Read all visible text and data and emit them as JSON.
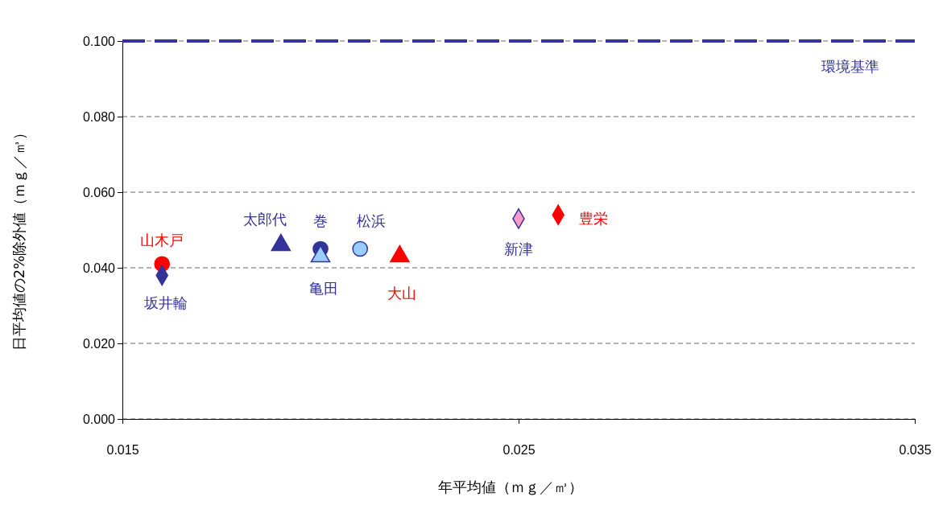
{
  "chart_data": {
    "type": "scatter",
    "xlabel": "年平均値（ｍｇ／㎥）",
    "ylabel": "日平均値の2%除外値（ｍｇ／㎥）",
    "xlim": [
      0.015,
      0.035
    ],
    "xticks": [
      0.015,
      0.025,
      0.035
    ],
    "ylim": [
      0,
      0.1
    ],
    "yticks": [
      {
        "value": 0,
        "label": "0.000"
      },
      {
        "value": 0.02,
        "label": "0.020"
      },
      {
        "value": 0.04,
        "label": "0.040"
      },
      {
        "value": 0.06,
        "label": "0.060"
      },
      {
        "value": 0.08,
        "label": "0.080"
      },
      {
        "value": 0.1,
        "label": "0.100"
      }
    ],
    "grid": "y",
    "ref_lines": [
      {
        "axis": "y",
        "value": 0.1,
        "label": "環境基準",
        "color": "#333399",
        "line_style": "dashed"
      }
    ],
    "series": [
      {
        "name": "山木戸",
        "color": "#ff0000",
        "marker": "circle",
        "x": [
          0.016
        ],
        "values": [
          0.041
        ]
      },
      {
        "name": "坂井輪",
        "color": "#333399",
        "marker": "diamond",
        "x": [
          0.016
        ],
        "values": [
          0.038
        ]
      },
      {
        "name": "太郎代",
        "color": "#333399",
        "marker": "triangle",
        "x": [
          0.019
        ],
        "values": [
          0.046
        ]
      },
      {
        "name": "巻",
        "color": "#333399",
        "marker": "circle",
        "x": [
          0.02
        ],
        "values": [
          0.045
        ]
      },
      {
        "name": "亀田",
        "color": "#99ccff",
        "marker": "triangle",
        "x": [
          0.02
        ],
        "values": [
          0.043
        ]
      },
      {
        "name": "松浜",
        "color": "#99ccff",
        "marker": "circle",
        "x": [
          0.021
        ],
        "values": [
          0.045
        ]
      },
      {
        "name": "大山",
        "color": "#ff0000",
        "marker": "triangle",
        "x": [
          0.022
        ],
        "values": [
          0.043
        ]
      },
      {
        "name": "新津",
        "color": "#ff99cc",
        "marker": "diamond",
        "x": [
          0.025
        ],
        "values": [
          0.053
        ]
      },
      {
        "name": "豊栄",
        "color": "#ff0000",
        "marker": "diamond",
        "x": [
          0.026
        ],
        "values": [
          0.054
        ]
      }
    ]
  }
}
